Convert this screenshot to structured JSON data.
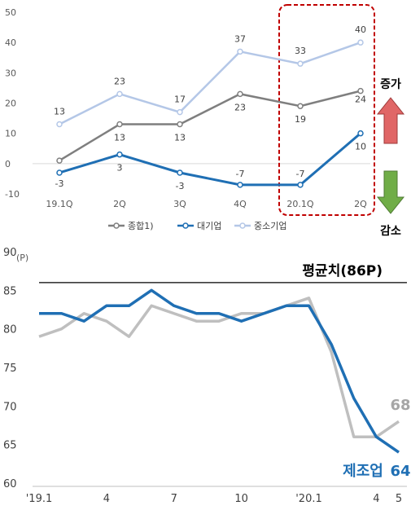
{
  "chart_data": [
    {
      "type": "line",
      "categories": [
        "19.1Q",
        "2Q",
        "3Q",
        "4Q",
        "20.1Q",
        "2Q"
      ],
      "ylim": [
        -10,
        50
      ],
      "yticks": [
        50,
        40,
        30,
        20,
        10,
        0,
        -10
      ],
      "grid": false,
      "legend_position": "bottom",
      "series": [
        {
          "name": "종합1)",
          "values": [
            1,
            13,
            13,
            23,
            19,
            24
          ],
          "labels": [
            "",
            "13",
            "13",
            "23",
            "19",
            "24"
          ],
          "color": "#7f7f7f"
        },
        {
          "name": "대기업",
          "values": [
            -3,
            3,
            -3,
            -7,
            -7,
            10
          ],
          "labels": [
            "-3",
            "3",
            "-3",
            "-7",
            "-7",
            "10"
          ],
          "color": "#1f6fb4"
        },
        {
          "name": "중소기업",
          "values": [
            13,
            23,
            17,
            37,
            33,
            40
          ],
          "labels": [
            "13",
            "23",
            "17",
            "37",
            "33",
            "40"
          ],
          "color": "#b4c7e7"
        }
      ],
      "side_labels": {
        "increase": "증가",
        "decrease": "감소"
      },
      "colors": {
        "increase_arrow": "#e06666",
        "decrease_arrow": "#70ad47",
        "highlight_box": "#c00000"
      }
    },
    {
      "type": "line",
      "unit": "(P)",
      "x_tick_labels": [
        "'19.1",
        "4",
        "7",
        "10",
        "'20.1",
        "4",
        "5"
      ],
      "ylim": [
        60,
        90
      ],
      "yticks": [
        90,
        85,
        80,
        75,
        70,
        65,
        60
      ],
      "grid": false,
      "reference_line": {
        "value": 86,
        "label": "평균치(86P)"
      },
      "series": [
        {
          "name": "제조업",
          "values": [
            82,
            82,
            81,
            83,
            83,
            85,
            83,
            82,
            82,
            81,
            82,
            83,
            83,
            78,
            71,
            66,
            64
          ],
          "end_value_label": "64",
          "color": "#1f6fb4"
        },
        {
          "name": "",
          "values": [
            79,
            80,
            82,
            81,
            79,
            83,
            82,
            81,
            81,
            82,
            82,
            83,
            84,
            77,
            66,
            66,
            68
          ],
          "end_value_label": "68",
          "color": "#bfbfbf"
        }
      ]
    }
  ]
}
